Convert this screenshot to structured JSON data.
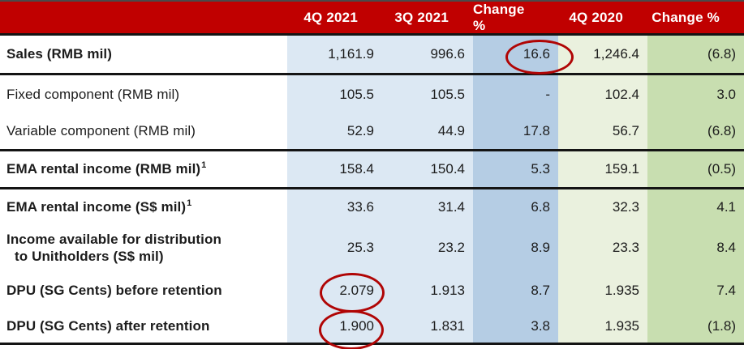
{
  "header": {
    "columns": [
      "4Q 2021",
      "3Q 2021",
      "Change %",
      "4Q 2020",
      "Change %"
    ]
  },
  "rows": [
    {
      "label": "Sales (RMB mil)",
      "values": [
        "1,161.9",
        "996.6",
        "16.6",
        "1,246.4",
        "(6.8)"
      ]
    },
    {
      "label": "Fixed component (RMB mil)",
      "values": [
        "105.5",
        "105.5",
        "-",
        "102.4",
        "3.0"
      ]
    },
    {
      "label": "Variable component (RMB mil)",
      "values": [
        "52.9",
        "44.9",
        "17.8",
        "56.7",
        "(6.8)"
      ]
    },
    {
      "label": "EMA rental income (RMB mil)",
      "sup": "1",
      "values": [
        "158.4",
        "150.4",
        "5.3",
        "159.1",
        "(0.5)"
      ]
    },
    {
      "label": "EMA rental income (S$ mil)",
      "sup": "1",
      "values": [
        "33.6",
        "31.4",
        "6.8",
        "32.3",
        "4.1"
      ]
    },
    {
      "label": "Income available for distribution",
      "label_line2": "to Unitholders (S$ mil)",
      "values": [
        "25.3",
        "23.2",
        "8.9",
        "23.3",
        "8.4"
      ]
    },
    {
      "label": "DPU (SG Cents) before retention",
      "values": [
        "2.079",
        "1.913",
        "8.7",
        "1.935",
        "7.4"
      ]
    },
    {
      "label": "DPU (SG Cents) after retention",
      "values": [
        "1.900",
        "1.831",
        "3.8",
        "1.935",
        "(1.8)"
      ]
    }
  ],
  "annotations": {
    "circled_values": [
      "16.6",
      "2.079",
      "1.900"
    ]
  },
  "colors": {
    "header_bg": "#C00000",
    "header_text": "#FFFFFF",
    "column_blue_light": "#DCE8F3",
    "column_blue_mid": "#B5CDE4",
    "column_green_light": "#EAF1DE",
    "column_green_mid": "#C8DEB0",
    "circle_red": "#B00505",
    "text": "#1C1C1C"
  }
}
